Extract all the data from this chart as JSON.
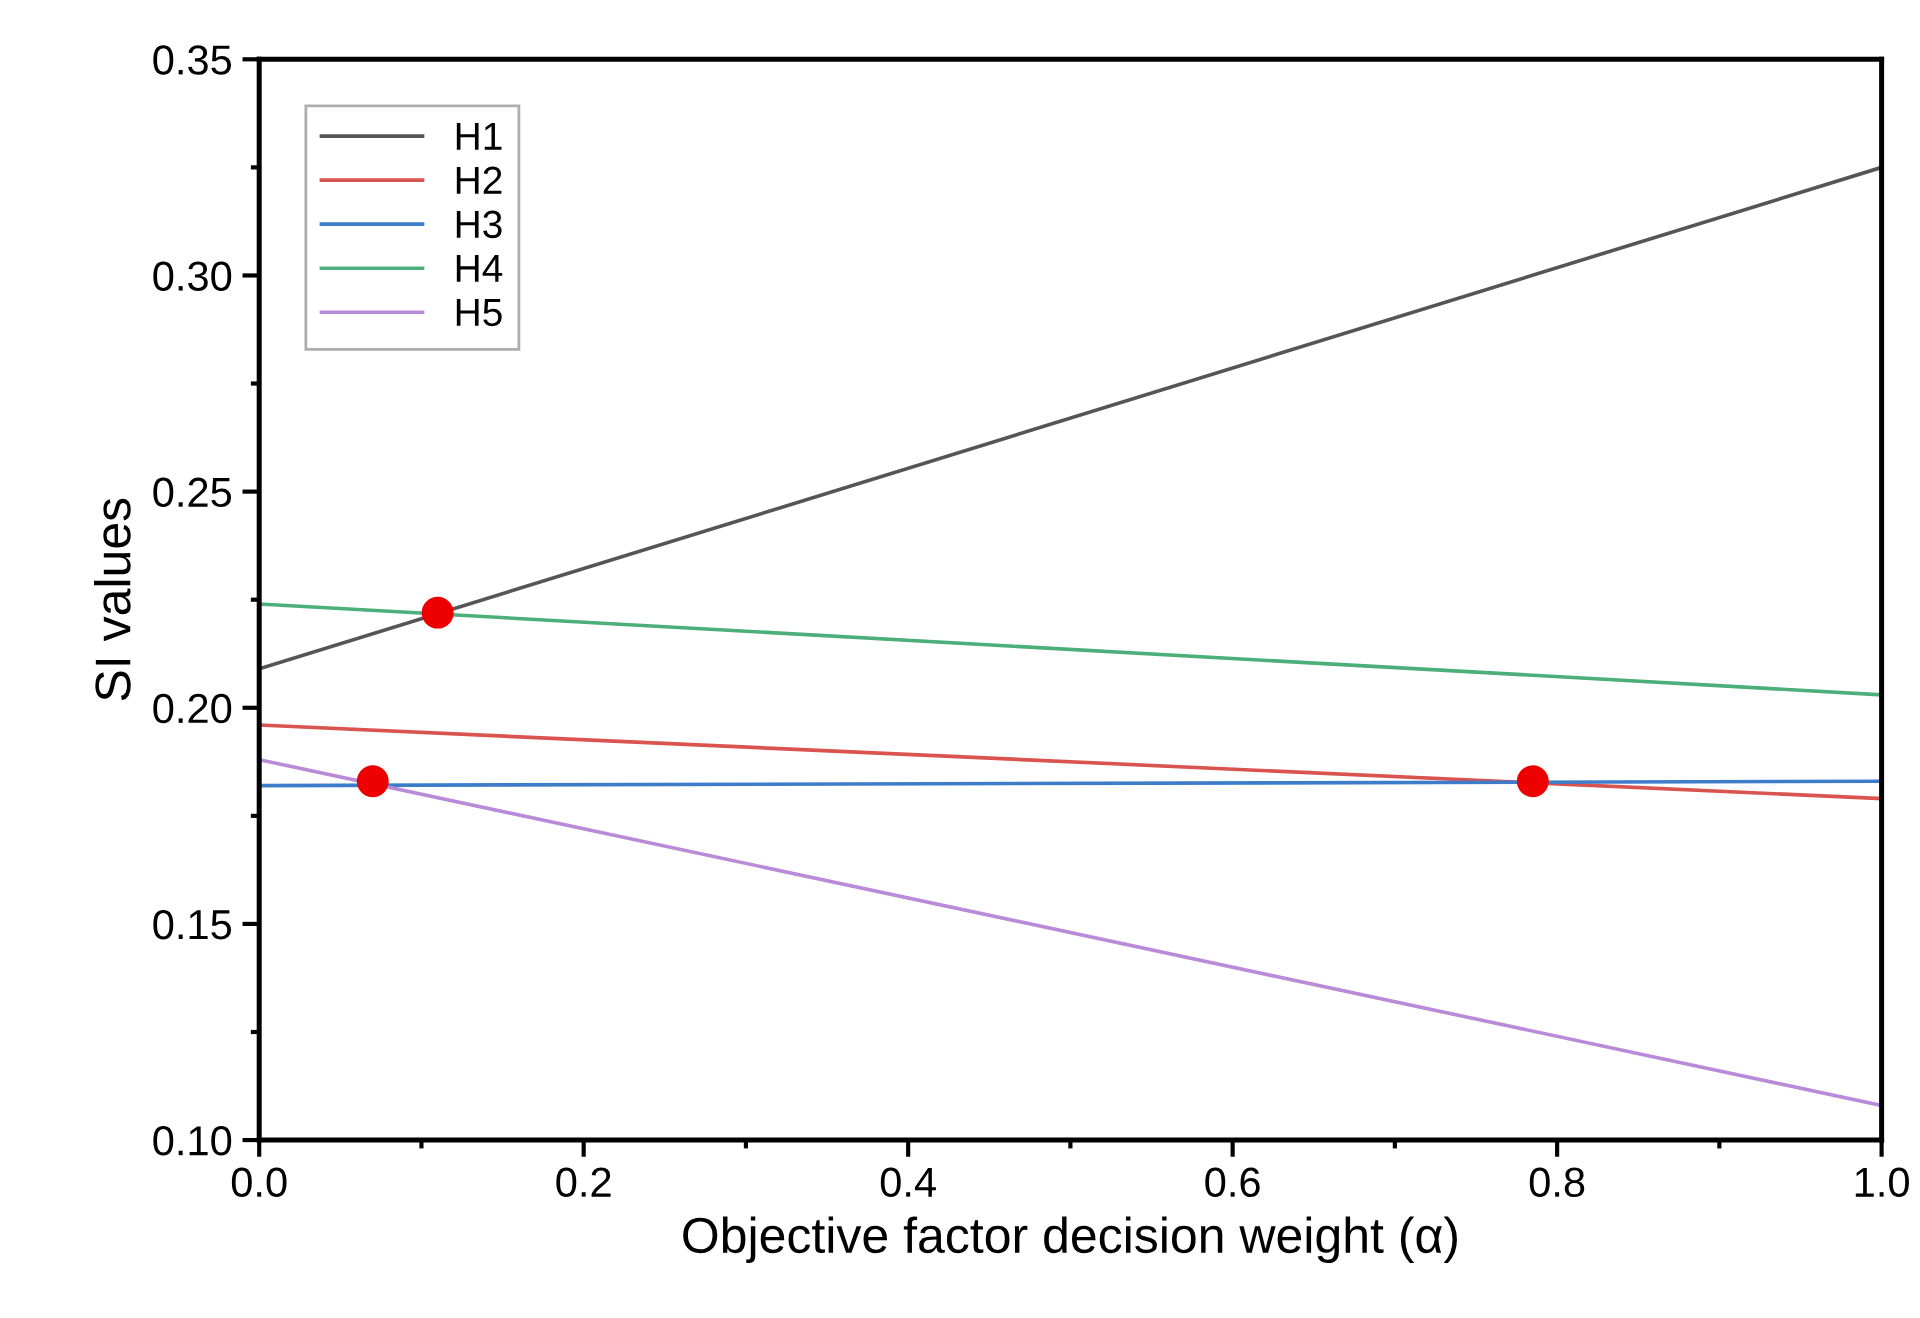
{
  "chart_data": {
    "type": "line",
    "xlabel": "Objective factor decision weight (α)",
    "ylabel": "SI values",
    "xlim": [
      0.0,
      1.0
    ],
    "ylim": [
      0.1,
      0.35
    ],
    "xticks": [
      {
        "value": 0.0,
        "label": "0.0"
      },
      {
        "value": 0.2,
        "label": "0.2"
      },
      {
        "value": 0.4,
        "label": "0.4"
      },
      {
        "value": 0.6,
        "label": "0.6"
      },
      {
        "value": 0.8,
        "label": "0.8"
      },
      {
        "value": 1.0,
        "label": "1.0"
      }
    ],
    "yticks": [
      {
        "value": 0.1,
        "label": "0.10"
      },
      {
        "value": 0.15,
        "label": "0.15"
      },
      {
        "value": 0.2,
        "label": "0.20"
      },
      {
        "value": 0.25,
        "label": "0.25"
      },
      {
        "value": 0.3,
        "label": "0.30"
      },
      {
        "value": 0.35,
        "label": "0.35"
      }
    ],
    "x": [
      0.0,
      1.0
    ],
    "grid": false,
    "legend": "top left",
    "marker": "none",
    "line_style": "solid",
    "series": [
      {
        "name": "H1",
        "color": "#555555",
        "values": [
          0.209,
          0.325
        ]
      },
      {
        "name": "H2",
        "color": "#d9534f",
        "values": [
          0.196,
          0.179
        ]
      },
      {
        "name": "H3",
        "color": "#3d7cc9",
        "values": [
          0.182,
          0.183
        ]
      },
      {
        "name": "H4",
        "color": "#4caf7a",
        "values": [
          0.224,
          0.203
        ]
      },
      {
        "name": "H5",
        "color": "#b98ad8",
        "values": [
          0.188,
          0.108
        ]
      },
      {
        "type": "scatter",
        "color": "#ee0000",
        "marker": "circle",
        "x": [
          0.11,
          0.07,
          0.785
        ],
        "values": [
          0.222,
          0.183,
          0.183
        ]
      }
    ]
  }
}
